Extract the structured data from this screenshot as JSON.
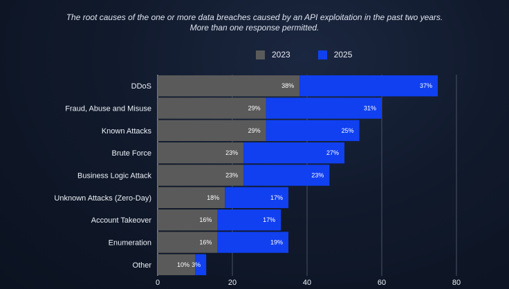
{
  "chart_data": {
    "type": "bar",
    "title": "The root causes of the one or more data breaches caused by an API exploitation in the past two years.",
    "subtitle": "More than one response permitted.",
    "stacked": true,
    "orientation": "horizontal",
    "categories": [
      "DDoS",
      "Fraud, Abuse and Misuse",
      "Known Attacks",
      "Brute Force",
      "Business Logic Attack",
      "Unknown Attacks (Zero-Day)",
      "Account Takeover",
      "Enumeration",
      "Other"
    ],
    "series": [
      {
        "name": "2023",
        "color": "#5a5a5a",
        "values": [
          38,
          29,
          29,
          23,
          23,
          18,
          16,
          16,
          10
        ]
      },
      {
        "name": "2025",
        "color": "#1040f0",
        "values": [
          37,
          31,
          25,
          27,
          23,
          17,
          17,
          19,
          3
        ]
      }
    ],
    "value_labels": [
      [
        "38%",
        "29%",
        "29%",
        "23%",
        "23%",
        "18%",
        "16%",
        "16%",
        "10%"
      ],
      [
        "37%",
        "31%",
        "25%",
        "27%",
        "23%",
        "17%",
        "17%",
        "19%",
        "3%"
      ]
    ],
    "xlim": [
      0,
      80
    ],
    "xticks": [
      0,
      20,
      40,
      60,
      80
    ],
    "xtick_labels": [
      "0",
      "20",
      "40",
      "60",
      "80"
    ],
    "grid": true,
    "legend_position": "top"
  }
}
